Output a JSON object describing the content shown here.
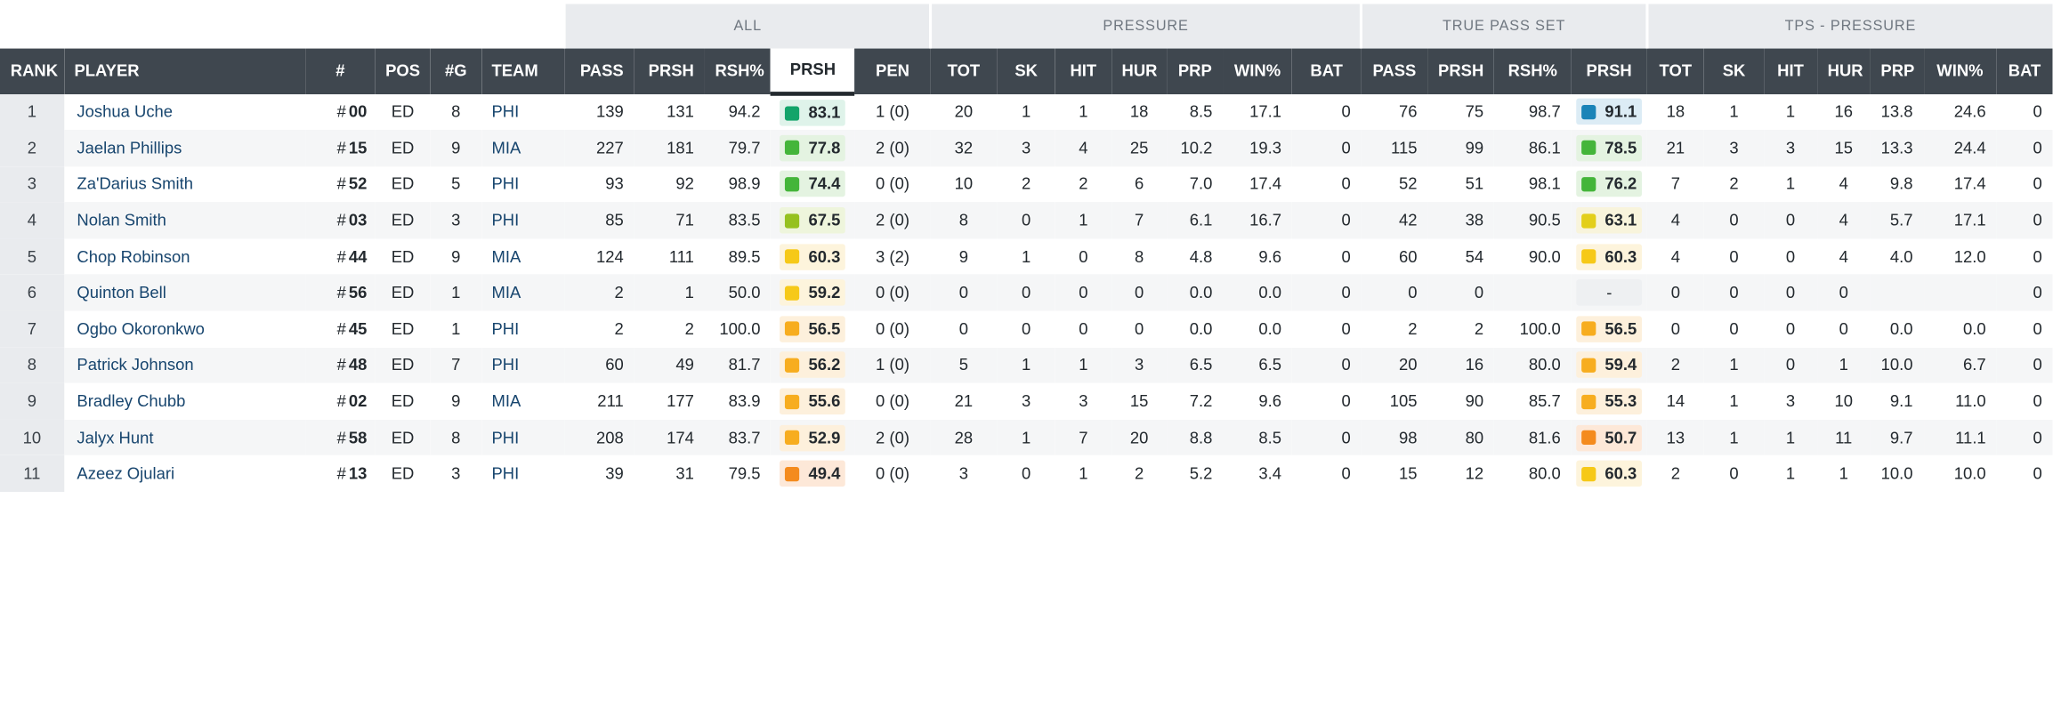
{
  "groups": [
    {
      "label": "ALL"
    },
    {
      "label": "PRESSURE"
    },
    {
      "label": "TRUE PASS SET"
    },
    {
      "label": "TPS - PRESSURE"
    }
  ],
  "headers": {
    "rank": "RANK",
    "player": "PLAYER",
    "num": "#",
    "pos": "POS",
    "games": "#G",
    "team": "TEAM",
    "pass": "PASS",
    "prsh": "PRSH",
    "rsh_pct": "RSH%",
    "grade": "PRSH",
    "pen": "PEN",
    "tot": "TOT",
    "sk": "SK",
    "hit": "HIT",
    "hur": "HUR",
    "prp": "PRP",
    "win_pct": "WIN%",
    "bat": "BAT",
    "tps_pass": "PASS",
    "tps_prsh": "PRSH",
    "tps_rsh_pct": "RSH%",
    "tps_grade": "PRSH",
    "tps_tot": "TOT",
    "tps_sk": "SK",
    "tps_hit": "HIT",
    "tps_hur": "HUR",
    "tps_prp": "PRP",
    "tps_win_pct": "WIN%",
    "tps_bat": "BAT"
  },
  "grade_colors": {
    "elite": "#1a84b8",
    "high": "#13a46a",
    "good": "#44b53a",
    "above": "#95c11f",
    "avg_yellow": "#e3cf1a",
    "avg": "#f6c918",
    "below": "#f7ad1f",
    "low": "#f48b1e"
  },
  "rows": [
    {
      "rank": "1",
      "player": "Joshua Uche",
      "num_hash": "#",
      "num": "00",
      "pos": "ED",
      "games": "8",
      "team": "PHI",
      "pass": "139",
      "prsh": "131",
      "rsh_pct": "94.2",
      "grade": "83.1",
      "grade_color": "#13a46a",
      "grade_bg": "#dff3ea",
      "pen": "1 (0)",
      "tot": "20",
      "sk": "1",
      "hit": "1",
      "hur": "18",
      "prp": "8.5",
      "win_pct": "17.1",
      "bat": "0",
      "tps_pass": "76",
      "tps_prsh": "75",
      "tps_rsh_pct": "98.7",
      "tps_grade": "91.1",
      "tps_grade_color": "#1a84b8",
      "tps_grade_bg": "#dcecf5",
      "tps_tot": "18",
      "tps_sk": "1",
      "tps_hit": "1",
      "tps_hur": "16",
      "tps_prp": "13.8",
      "tps_win_pct": "24.6",
      "tps_bat": "0"
    },
    {
      "rank": "2",
      "player": "Jaelan Phillips",
      "num_hash": "#",
      "num": "15",
      "pos": "ED",
      "games": "9",
      "team": "MIA",
      "pass": "227",
      "prsh": "181",
      "rsh_pct": "79.7",
      "grade": "77.8",
      "grade_color": "#44b53a",
      "grade_bg": "#e4f3e1",
      "pen": "2 (0)",
      "tot": "32",
      "sk": "3",
      "hit": "4",
      "hur": "25",
      "prp": "10.2",
      "win_pct": "19.3",
      "bat": "0",
      "tps_pass": "115",
      "tps_prsh": "99",
      "tps_rsh_pct": "86.1",
      "tps_grade": "78.5",
      "tps_grade_color": "#44b53a",
      "tps_grade_bg": "#e4f3e1",
      "tps_tot": "21",
      "tps_sk": "3",
      "tps_hit": "3",
      "tps_hur": "15",
      "tps_prp": "13.3",
      "tps_win_pct": "24.4",
      "tps_bat": "0"
    },
    {
      "rank": "3",
      "player": "Za'Darius Smith",
      "num_hash": "#",
      "num": "52",
      "pos": "ED",
      "games": "5",
      "team": "PHI",
      "pass": "93",
      "prsh": "92",
      "rsh_pct": "98.9",
      "grade": "74.4",
      "grade_color": "#44b53a",
      "grade_bg": "#e4f3e1",
      "pen": "0 (0)",
      "tot": "10",
      "sk": "2",
      "hit": "2",
      "hur": "6",
      "prp": "7.0",
      "win_pct": "17.4",
      "bat": "0",
      "tps_pass": "52",
      "tps_prsh": "51",
      "tps_rsh_pct": "98.1",
      "tps_grade": "76.2",
      "tps_grade_color": "#44b53a",
      "tps_grade_bg": "#e4f3e1",
      "tps_tot": "7",
      "tps_sk": "2",
      "tps_hit": "1",
      "tps_hur": "4",
      "tps_prp": "9.8",
      "tps_win_pct": "17.4",
      "tps_bat": "0"
    },
    {
      "rank": "4",
      "player": "Nolan Smith",
      "num_hash": "#",
      "num": "03",
      "pos": "ED",
      "games": "3",
      "team": "PHI",
      "pass": "85",
      "prsh": "71",
      "rsh_pct": "83.5",
      "grade": "67.5",
      "grade_color": "#95c11f",
      "grade_bg": "#eef5dc",
      "pen": "2 (0)",
      "tot": "8",
      "sk": "0",
      "hit": "1",
      "hur": "7",
      "prp": "6.1",
      "win_pct": "16.7",
      "bat": "0",
      "tps_pass": "42",
      "tps_prsh": "38",
      "tps_rsh_pct": "90.5",
      "tps_grade": "63.1",
      "tps_grade_color": "#e3cf1a",
      "tps_grade_bg": "#f8f4dc",
      "tps_tot": "4",
      "tps_sk": "0",
      "tps_hit": "0",
      "tps_hur": "4",
      "tps_prp": "5.7",
      "tps_win_pct": "17.1",
      "tps_bat": "0"
    },
    {
      "rank": "5",
      "player": "Chop Robinson",
      "num_hash": "#",
      "num": "44",
      "pos": "ED",
      "games": "9",
      "team": "MIA",
      "pass": "124",
      "prsh": "111",
      "rsh_pct": "89.5",
      "grade": "60.3",
      "grade_color": "#f6c918",
      "grade_bg": "#fdf4dc",
      "pen": "3 (2)",
      "tot": "9",
      "sk": "1",
      "hit": "0",
      "hur": "8",
      "prp": "4.8",
      "win_pct": "9.6",
      "bat": "0",
      "tps_pass": "60",
      "tps_prsh": "54",
      "tps_rsh_pct": "90.0",
      "tps_grade": "60.3",
      "tps_grade_color": "#f6c918",
      "tps_grade_bg": "#fdf4dc",
      "tps_tot": "4",
      "tps_sk": "0",
      "tps_hit": "0",
      "tps_hur": "4",
      "tps_prp": "4.0",
      "tps_win_pct": "12.0",
      "tps_bat": "0"
    },
    {
      "rank": "6",
      "player": "Quinton Bell",
      "num_hash": "#",
      "num": "56",
      "pos": "ED",
      "games": "1",
      "team": "MIA",
      "pass": "2",
      "prsh": "1",
      "rsh_pct": "50.0",
      "grade": "59.2",
      "grade_color": "#f6c918",
      "grade_bg": "#fdf4dc",
      "pen": "0 (0)",
      "tot": "0",
      "sk": "0",
      "hit": "0",
      "hur": "0",
      "prp": "0.0",
      "win_pct": "0.0",
      "bat": "0",
      "tps_pass": "0",
      "tps_prsh": "0",
      "tps_rsh_pct": "",
      "tps_grade": "-",
      "tps_grade_color": "",
      "tps_grade_bg": "",
      "tps_tot": "0",
      "tps_sk": "0",
      "tps_hit": "0",
      "tps_hur": "0",
      "tps_prp": "",
      "tps_win_pct": "",
      "tps_bat": "0"
    },
    {
      "rank": "7",
      "player": "Ogbo Okoronkwo",
      "num_hash": "#",
      "num": "45",
      "pos": "ED",
      "games": "1",
      "team": "PHI",
      "pass": "2",
      "prsh": "2",
      "rsh_pct": "100.0",
      "grade": "56.5",
      "grade_color": "#f7ad1f",
      "grade_bg": "#fdf0dc",
      "pen": "0 (0)",
      "tot": "0",
      "sk": "0",
      "hit": "0",
      "hur": "0",
      "prp": "0.0",
      "win_pct": "0.0",
      "bat": "0",
      "tps_pass": "2",
      "tps_prsh": "2",
      "tps_rsh_pct": "100.0",
      "tps_grade": "56.5",
      "tps_grade_color": "#f7ad1f",
      "tps_grade_bg": "#fdf0dc",
      "tps_tot": "0",
      "tps_sk": "0",
      "tps_hit": "0",
      "tps_hur": "0",
      "tps_prp": "0.0",
      "tps_win_pct": "0.0",
      "tps_bat": "0"
    },
    {
      "rank": "8",
      "player": "Patrick Johnson",
      "num_hash": "#",
      "num": "48",
      "pos": "ED",
      "games": "7",
      "team": "PHI",
      "pass": "60",
      "prsh": "49",
      "rsh_pct": "81.7",
      "grade": "56.2",
      "grade_color": "#f7ad1f",
      "grade_bg": "#fdf0dc",
      "pen": "1 (0)",
      "tot": "5",
      "sk": "1",
      "hit": "1",
      "hur": "3",
      "prp": "6.5",
      "win_pct": "6.5",
      "bat": "0",
      "tps_pass": "20",
      "tps_prsh": "16",
      "tps_rsh_pct": "80.0",
      "tps_grade": "59.4",
      "tps_grade_color": "#f7ad1f",
      "tps_grade_bg": "#fdf0dc",
      "tps_tot": "2",
      "tps_sk": "1",
      "tps_hit": "0",
      "tps_hur": "1",
      "tps_prp": "10.0",
      "tps_win_pct": "6.7",
      "tps_bat": "0"
    },
    {
      "rank": "9",
      "player": "Bradley Chubb",
      "num_hash": "#",
      "num": "02",
      "pos": "ED",
      "games": "9",
      "team": "MIA",
      "pass": "211",
      "prsh": "177",
      "rsh_pct": "83.9",
      "grade": "55.6",
      "grade_color": "#f7ad1f",
      "grade_bg": "#fdf0dc",
      "pen": "0 (0)",
      "tot": "21",
      "sk": "3",
      "hit": "3",
      "hur": "15",
      "prp": "7.2",
      "win_pct": "9.6",
      "bat": "0",
      "tps_pass": "105",
      "tps_prsh": "90",
      "tps_rsh_pct": "85.7",
      "tps_grade": "55.3",
      "tps_grade_color": "#f7ad1f",
      "tps_grade_bg": "#fdf0dc",
      "tps_tot": "14",
      "tps_sk": "1",
      "tps_hit": "3",
      "tps_hur": "10",
      "tps_prp": "9.1",
      "tps_win_pct": "11.0",
      "tps_bat": "0"
    },
    {
      "rank": "10",
      "player": "Jalyx Hunt",
      "num_hash": "#",
      "num": "58",
      "pos": "ED",
      "games": "8",
      "team": "PHI",
      "pass": "208",
      "prsh": "174",
      "rsh_pct": "83.7",
      "grade": "52.9",
      "grade_color": "#f7ad1f",
      "grade_bg": "#fdf0dc",
      "pen": "2 (0)",
      "tot": "28",
      "sk": "1",
      "hit": "7",
      "hur": "20",
      "prp": "8.8",
      "win_pct": "8.5",
      "bat": "0",
      "tps_pass": "98",
      "tps_prsh": "80",
      "tps_rsh_pct": "81.6",
      "tps_grade": "50.7",
      "tps_grade_color": "#f48b1e",
      "tps_grade_bg": "#fde8d8",
      "tps_tot": "13",
      "tps_sk": "1",
      "tps_hit": "1",
      "tps_hur": "11",
      "tps_prp": "9.7",
      "tps_win_pct": "11.1",
      "tps_bat": "0"
    },
    {
      "rank": "11",
      "player": "Azeez Ojulari",
      "num_hash": "#",
      "num": "13",
      "pos": "ED",
      "games": "3",
      "team": "PHI",
      "pass": "39",
      "prsh": "31",
      "rsh_pct": "79.5",
      "grade": "49.4",
      "grade_color": "#f48b1e",
      "grade_bg": "#fde8d8",
      "pen": "0 (0)",
      "tot": "3",
      "sk": "0",
      "hit": "1",
      "hur": "2",
      "prp": "5.2",
      "win_pct": "3.4",
      "bat": "0",
      "tps_pass": "15",
      "tps_prsh": "12",
      "tps_rsh_pct": "80.0",
      "tps_grade": "60.3",
      "tps_grade_color": "#f6c918",
      "tps_grade_bg": "#fdf4dc",
      "tps_tot": "2",
      "tps_sk": "0",
      "tps_hit": "1",
      "tps_hur": "1",
      "tps_prp": "10.0",
      "tps_win_pct": "10.0",
      "tps_bat": "0"
    }
  ]
}
